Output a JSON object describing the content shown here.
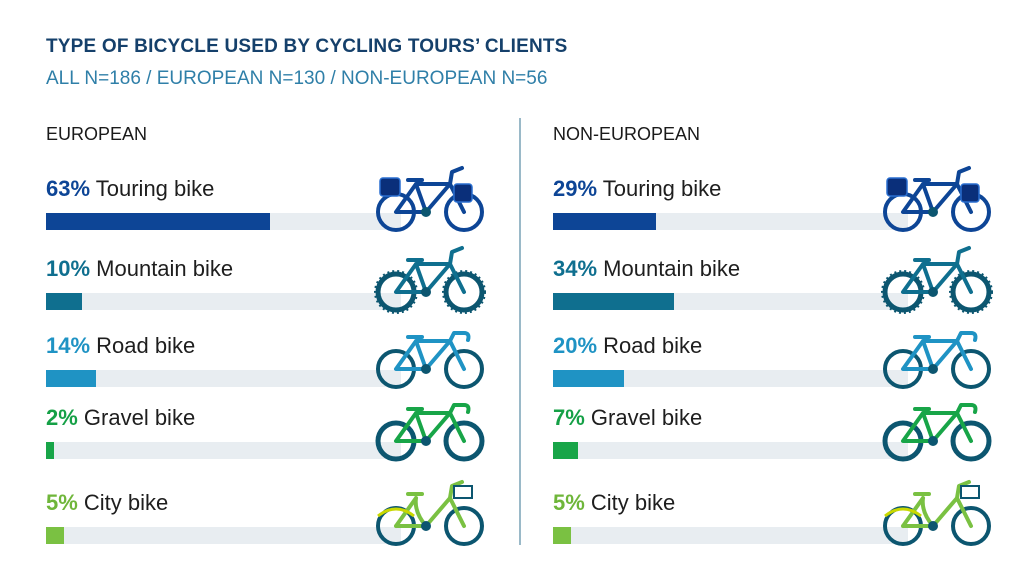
{
  "title": "TYPE OF BICYCLE USED BY CYCLING TOURS’ CLIENTS",
  "subtitle": "ALL N=186 / EUROPEAN N=130 / NON-EUROPEAN N=56",
  "colors": {
    "touring": "#0d4596",
    "mountain": "#0f6f8f",
    "road": "#1f93c4",
    "gravel": "#18a548",
    "city": "#7ac142",
    "track": "#e8edf1",
    "dark_wheel": "#0c5670"
  },
  "chart_data": [
    {
      "type": "bar",
      "panel": "EUROPEAN",
      "title": "EUROPEAN",
      "categories": [
        "Touring bike",
        "Mountain bike",
        "Road bike",
        "Gravel bike",
        "City bike"
      ],
      "values": [
        63,
        10,
        14,
        2,
        5
      ],
      "labels": [
        "63%",
        "10%",
        "14%",
        "2%",
        "5%"
      ],
      "unit": "%",
      "xlim": [
        0,
        100
      ]
    },
    {
      "type": "bar",
      "panel": "NON-EUROPEAN",
      "title": "NON-EUROPEAN",
      "categories": [
        "Touring bike",
        "Mountain bike",
        "Road bike",
        "Gravel bike",
        "City bike"
      ],
      "values": [
        29,
        34,
        20,
        7,
        5
      ],
      "labels": [
        "29%",
        "34%",
        "20%",
        "7%",
        "5%"
      ],
      "unit": "%",
      "xlim": [
        0,
        100
      ]
    }
  ],
  "bike_icons": [
    "touring-bike-icon",
    "mountain-bike-icon",
    "road-bike-icon",
    "gravel-bike-icon",
    "city-bike-icon"
  ]
}
